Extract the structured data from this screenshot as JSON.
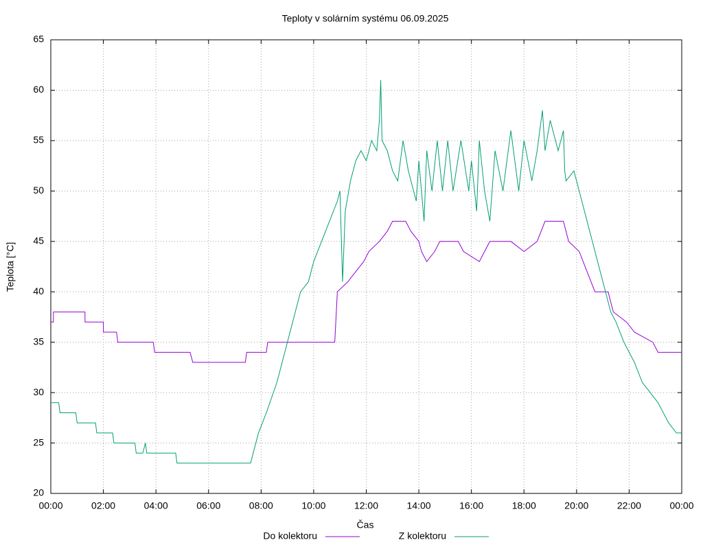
{
  "chart_data": {
    "type": "line",
    "title": "Teploty v solárním systému 06.09.2025",
    "xlabel": "Čas",
    "ylabel": "Teplota [°C]",
    "xlim": [
      0,
      24
    ],
    "ylim": [
      20,
      65
    ],
    "xticks": [
      {
        "value": 0,
        "label": "00:00"
      },
      {
        "value": 2,
        "label": "02:00"
      },
      {
        "value": 4,
        "label": "04:00"
      },
      {
        "value": 6,
        "label": "06:00"
      },
      {
        "value": 8,
        "label": "08:00"
      },
      {
        "value": 10,
        "label": "10:00"
      },
      {
        "value": 12,
        "label": "12:00"
      },
      {
        "value": 14,
        "label": "14:00"
      },
      {
        "value": 16,
        "label": "16:00"
      },
      {
        "value": 18,
        "label": "18:00"
      },
      {
        "value": 20,
        "label": "20:00"
      },
      {
        "value": 22,
        "label": "22:00"
      },
      {
        "value": 24,
        "label": "00:00"
      }
    ],
    "yticks": [
      20,
      25,
      30,
      35,
      40,
      45,
      50,
      55,
      60,
      65
    ],
    "grid": true,
    "legend": "bottom",
    "series": [
      {
        "name": "Do kolektoru",
        "color": "#9400d3",
        "x": [
          0,
          0.1,
          0.1,
          1.3,
          1.3,
          2.0,
          2.0,
          2.5,
          2.55,
          3.9,
          3.95,
          5.3,
          5.4,
          7.4,
          7.45,
          8.2,
          8.25,
          10.8,
          10.9,
          11.3,
          11.6,
          11.9,
          12.1,
          12.5,
          12.8,
          13.0,
          13.5,
          13.7,
          14.0,
          14.1,
          14.3,
          14.6,
          14.8,
          15.5,
          15.7,
          16.3,
          16.5,
          16.7,
          17.5,
          18.0,
          18.5,
          18.8,
          19.5,
          19.7,
          20.1,
          20.4,
          20.7,
          21.2,
          21.4,
          21.9,
          22.2,
          22.9,
          23.1,
          24
        ],
        "values": [
          37,
          37,
          38,
          38,
          37,
          37,
          36,
          36,
          35,
          35,
          34,
          34,
          33,
          33,
          34,
          34,
          35,
          35,
          40,
          41,
          42,
          43,
          44,
          45,
          46,
          47,
          47,
          46,
          45,
          44,
          43,
          44,
          45,
          45,
          44,
          43,
          44,
          45,
          45,
          44,
          45,
          47,
          47,
          45,
          44,
          42,
          40,
          40,
          38,
          37,
          36,
          35,
          34,
          34
        ]
      },
      {
        "name": "Z kolektoru",
        "color": "#009e73",
        "x": [
          0,
          0.3,
          0.35,
          0.95,
          1.0,
          1.7,
          1.75,
          2.35,
          2.4,
          3.2,
          3.25,
          3.5,
          3.6,
          3.65,
          4.75,
          4.8,
          7.6,
          7.7,
          7.9,
          8.2,
          8.6,
          8.9,
          9.3,
          9.5,
          9.8,
          10.0,
          10.3,
          10.6,
          10.9,
          11.0,
          11.1,
          11.2,
          11.4,
          11.6,
          11.8,
          12.0,
          12.2,
          12.4,
          12.5,
          12.55,
          12.6,
          12.8,
          13.0,
          13.2,
          13.4,
          13.6,
          13.9,
          14.0,
          14.2,
          14.3,
          14.5,
          14.7,
          14.9,
          15.1,
          15.3,
          15.6,
          15.9,
          16.0,
          16.2,
          16.3,
          16.5,
          16.7,
          16.9,
          17.2,
          17.5,
          17.8,
          18.0,
          18.3,
          18.5,
          18.7,
          18.8,
          19.0,
          19.3,
          19.5,
          19.55,
          19.6,
          19.9,
          20.2,
          20.5,
          20.8,
          21.1,
          21.3,
          21.5,
          21.8,
          22.2,
          22.5,
          22.8,
          23.1,
          23.5,
          23.8,
          24
        ],
        "values": [
          29,
          29,
          28,
          28,
          27,
          27,
          26,
          26,
          25,
          25,
          24,
          24,
          25,
          24,
          24,
          23,
          23,
          24,
          26,
          28,
          31,
          34,
          38,
          40,
          41,
          43,
          45,
          47,
          49,
          50,
          41,
          48,
          51,
          53,
          54,
          53,
          55,
          54,
          57,
          61,
          55,
          54,
          52,
          51,
          55,
          52,
          49,
          53,
          47,
          54,
          50,
          55,
          50,
          55,
          50,
          55,
          50,
          53,
          48,
          55,
          50,
          47,
          54,
          50,
          56,
          50,
          55,
          51,
          54,
          58,
          54,
          57,
          54,
          56,
          52,
          51,
          52,
          49,
          46,
          43,
          40,
          38,
          37,
          35,
          33,
          31,
          30,
          29,
          27,
          26,
          26
        ]
      }
    ]
  }
}
